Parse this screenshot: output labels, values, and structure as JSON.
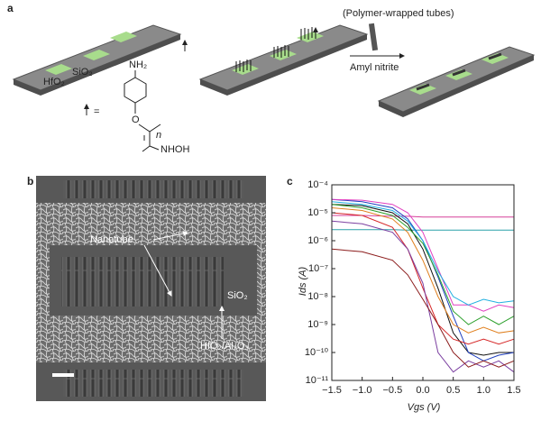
{
  "panel_a": {
    "label": "a",
    "hfo2": "HfO₂",
    "sio2": "SiO₂",
    "nh2": "NH₂",
    "equals": "=",
    "oxygen": "O",
    "n": "n",
    "nhoh": "NHOH",
    "tubes_label": "(Polymer-wrapped tubes)",
    "reagent": "Amyl nitrite"
  },
  "panel_b": {
    "label": "b",
    "nanotube": "Nanotube",
    "sio2": "SiO₂",
    "oxide": "HfO₂/Al₂O₃"
  },
  "panel_c": {
    "label": "c",
    "chart_data": {
      "type": "line",
      "y_label": "Ids (A)",
      "x_label": "Vgs (V)",
      "log_y": true,
      "xlim": [
        -1.5,
        1.5
      ],
      "ylim": [
        1e-11,
        0.0001
      ],
      "xticks": [
        {
          "value": -1.5,
          "label": "−1.5"
        },
        {
          "value": -1.0,
          "label": "−1.0"
        },
        {
          "value": -0.5,
          "label": "−0.5"
        },
        {
          "value": 0,
          "label": "0.0"
        },
        0.5,
        {
          "value": 1.0,
          "label": "1.0"
        },
        1.5
      ],
      "yticks": [
        {
          "value": 1e-11,
          "label": "10⁻¹¹"
        },
        {
          "value": 1e-10,
          "label": "10⁻¹⁰"
        },
        {
          "value": 1e-09,
          "label": "10⁻⁹"
        },
        {
          "value": 1e-08,
          "label": "10⁻⁸"
        },
        {
          "value": 1e-07,
          "label": "10⁻⁷"
        },
        {
          "value": 1e-06,
          "label": "10⁻⁶"
        },
        {
          "value": 1e-05,
          "label": "10⁻⁵"
        },
        {
          "value": 0.0001,
          "label": "10⁻⁴"
        }
      ],
      "x": [
        -1.5,
        -1.0,
        -0.5,
        -0.25,
        0,
        0.25,
        0.5,
        0.75,
        1.0,
        1.25,
        1.5
      ],
      "series": [
        {
          "color": "#d6409a",
          "values": [
            8e-06,
            8e-06,
            7.5e-06,
            7.5e-06,
            7e-06,
            7e-06,
            7e-06,
            7e-06,
            7e-06,
            7e-06,
            7e-06
          ]
        },
        {
          "color": "#2aa0a8",
          "values": [
            2.5e-06,
            2.5e-06,
            2.5e-06,
            2.4e-06,
            2.4e-06,
            2.4e-06,
            2.4e-06,
            2.4e-06,
            2.4e-06,
            2.4e-06,
            2.4e-06
          ]
        },
        {
          "color": "#111111",
          "values": [
            2e-05,
            1.8e-05,
            1e-05,
            4e-06,
            5e-07,
            2e-08,
            5e-10,
            1e-10,
            8e-11,
            1e-10,
            1e-10
          ]
        },
        {
          "color": "#1f3fbf",
          "values": [
            3e-05,
            2.5e-05,
            1.5e-05,
            6e-06,
            1e-06,
            5e-08,
            2e-09,
            1e-10,
            5e-11,
            8e-11,
            1e-10
          ]
        },
        {
          "color": "#d62728",
          "values": [
            1e-05,
            8e-06,
            3e-06,
            5e-07,
            2e-08,
            1e-09,
            3e-10,
            2e-10,
            3e-10,
            2e-10,
            3e-10
          ]
        },
        {
          "color": "#2ca02c",
          "values": [
            2e-05,
            1.5e-05,
            8e-06,
            3e-06,
            8e-07,
            6e-08,
            3e-09,
            1e-09,
            2e-09,
            1e-09,
            2e-09
          ]
        },
        {
          "color": "#7b3fa0",
          "values": [
            5e-06,
            4e-06,
            2e-06,
            5e-07,
            3e-08,
            1e-10,
            2e-11,
            5e-11,
            3e-11,
            5e-11,
            2e-11
          ]
        },
        {
          "color": "#e040c0",
          "values": [
            3e-05,
            2.8e-05,
            2e-05,
            1e-05,
            2e-06,
            1e-07,
            5e-09,
            5e-09,
            3e-09,
            5e-09,
            4e-09
          ]
        },
        {
          "color": "#8b1a1a",
          "values": [
            5e-07,
            4e-07,
            2e-07,
            6e-08,
            8e-09,
            1e-09,
            1e-10,
            3e-11,
            5e-11,
            3e-11,
            5e-11
          ]
        },
        {
          "color": "#e08020",
          "values": [
            1.5e-05,
            1.2e-05,
            6e-06,
            2e-06,
            2e-07,
            1e-08,
            1e-09,
            5e-10,
            8e-10,
            5e-10,
            6e-10
          ]
        },
        {
          "color": "#20b0e0",
          "values": [
            2.5e-05,
            2e-05,
            1.2e-05,
            5e-06,
            1e-06,
            8e-08,
            1e-08,
            5e-09,
            8e-09,
            6e-09,
            7e-09
          ]
        }
      ]
    }
  }
}
